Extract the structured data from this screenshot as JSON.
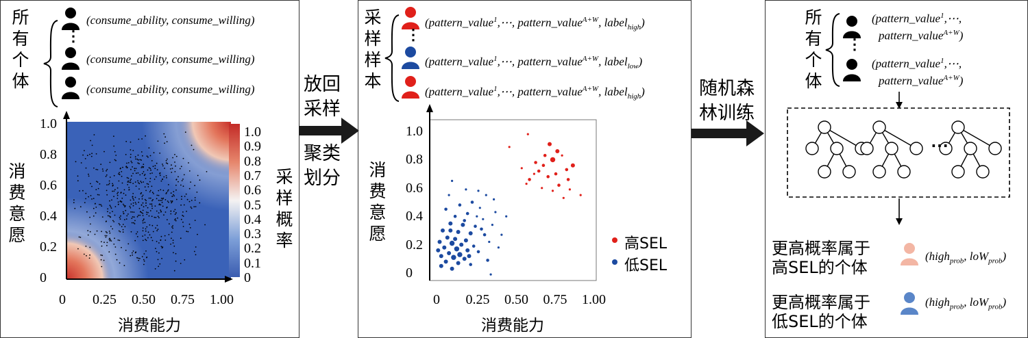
{
  "panel1": {
    "title": "所有个体",
    "tuple": "(consume_ability, consume_willing)",
    "ellipsis": "⋮",
    "heatmap": {
      "xlabel": "消费能力",
      "ylabel": "消费意愿",
      "xticks": [
        "0",
        "0.25",
        "0.50",
        "0.75",
        "1.00"
      ],
      "yticks": [
        "0",
        "0.2",
        "0.4",
        "0.6",
        "0.8",
        "1.0"
      ],
      "colorbar_label": "采样概率",
      "colorbar_ticks": [
        "0",
        "0.1",
        "0.2",
        "0.3",
        "0.4",
        "0.5",
        "0.6",
        "0.7",
        "0.8",
        "0.9",
        "1.0"
      ]
    }
  },
  "arrow1": {
    "top": "放回采样",
    "bottom": "聚类划分"
  },
  "panel2": {
    "title": "采样样本",
    "tuple_high": {
      "a": "pattern_value",
      "sup1": "1",
      "mid": ",⋯, pattern_value",
      "sup2": "A+W",
      "c": ", label",
      "sub": "high",
      "d": ")"
    },
    "tuple_low": {
      "a": "pattern_value",
      "sup1": "1",
      "mid": ",⋯, pattern_value",
      "sup2": "A+W",
      "c": ", label",
      "sub": "low",
      "d": ")"
    },
    "ellipsis": "⋮"
  },
  "chart_data": {
    "type": "scatter",
    "xlabel": "消费能力",
    "ylabel": "消费意愿",
    "xlim": [
      0,
      1.05
    ],
    "ylim": [
      -0.05,
      1.02
    ],
    "xticks": [
      "0",
      "0.25",
      "0.50",
      "0.75",
      "1.00"
    ],
    "yticks": [
      "0",
      "0.2",
      "0.4",
      "0.6",
      "0.8",
      "1.0"
    ],
    "legend_position": "bottom-right",
    "series": [
      {
        "name": "高SEL",
        "color": "#e0201a",
        "points": [
          [
            0.47,
            0.89
          ],
          [
            0.59,
            0.98
          ],
          [
            0.73,
            0.91
          ],
          [
            0.78,
            0.86
          ],
          [
            0.7,
            0.83
          ],
          [
            0.75,
            0.8
          ],
          [
            0.69,
            0.76
          ],
          [
            0.66,
            0.72
          ],
          [
            0.88,
            0.76
          ],
          [
            0.63,
            0.7
          ],
          [
            0.72,
            0.68
          ],
          [
            0.84,
            0.73
          ],
          [
            0.55,
            0.74
          ],
          [
            0.6,
            0.66
          ],
          [
            0.79,
            0.62
          ],
          [
            0.85,
            0.66
          ],
          [
            0.93,
            0.55
          ],
          [
            0.68,
            0.6
          ],
          [
            0.75,
            0.58
          ],
          [
            0.82,
            0.53
          ],
          [
            0.58,
            0.63
          ],
          [
            0.86,
            0.59
          ],
          [
            0.77,
            0.7
          ],
          [
            0.64,
            0.78
          ],
          [
            0.81,
            0.83
          ]
        ],
        "sizes": [
          1,
          1,
          3,
          3,
          2,
          4,
          2,
          2,
          3,
          1,
          2,
          2,
          1,
          2,
          2,
          2,
          1,
          1,
          1,
          1,
          1,
          1,
          2,
          2,
          1
        ]
      },
      {
        "name": "低SEL",
        "color": "#1c4aa0",
        "points": [
          [
            0.1,
            0.65
          ],
          [
            0.19,
            0.59
          ],
          [
            0.08,
            0.55
          ],
          [
            0.23,
            0.5
          ],
          [
            0.15,
            0.48
          ],
          [
            0.28,
            0.46
          ],
          [
            0.06,
            0.45
          ],
          [
            0.2,
            0.42
          ],
          [
            0.12,
            0.4
          ],
          [
            0.3,
            0.38
          ],
          [
            0.09,
            0.35
          ],
          [
            0.17,
            0.34
          ],
          [
            0.25,
            0.33
          ],
          [
            0.04,
            0.3
          ],
          [
            0.14,
            0.29
          ],
          [
            0.22,
            0.28
          ],
          [
            0.31,
            0.27
          ],
          [
            0.07,
            0.25
          ],
          [
            0.12,
            0.24
          ],
          [
            0.19,
            0.23
          ],
          [
            0.02,
            0.22
          ],
          [
            0.1,
            0.21
          ],
          [
            0.16,
            0.2
          ],
          [
            0.24,
            0.19
          ],
          [
            0.05,
            0.18
          ],
          [
            0.13,
            0.17
          ],
          [
            0.2,
            0.16
          ],
          [
            0.27,
            0.15
          ],
          [
            0.08,
            0.14
          ],
          [
            0.15,
            0.13
          ],
          [
            0.03,
            0.12
          ],
          [
            0.11,
            0.11
          ],
          [
            0.18,
            0.1
          ],
          [
            0.06,
            0.08
          ],
          [
            0.14,
            0.07
          ],
          [
            0.22,
            0.06
          ],
          [
            0.03,
            0.05
          ],
          [
            0.1,
            0.03
          ],
          [
            0.36,
            0.34
          ],
          [
            0.34,
            0.22
          ],
          [
            0.38,
            0.43
          ],
          [
            0.4,
            0.18
          ],
          [
            0.33,
            0.09
          ],
          [
            0.35,
            -0.01
          ],
          [
            0.26,
            0.4
          ],
          [
            0.09,
            0.3
          ],
          [
            0.18,
            0.37
          ],
          [
            0.29,
            0.31
          ],
          [
            0.21,
            0.12
          ],
          [
            0.01,
            0.16
          ],
          [
            0.45,
            0.4
          ],
          [
            0.42,
            0.27
          ],
          [
            0.37,
            0.52
          ],
          [
            0.32,
            0.55
          ],
          [
            0.27,
            0.58
          ]
        ],
        "sizes": [
          1,
          1,
          1,
          2,
          2,
          1,
          2,
          2,
          2,
          1,
          3,
          3,
          2,
          3,
          3,
          3,
          2,
          3,
          3,
          3,
          3,
          4,
          3,
          2,
          3,
          4,
          3,
          2,
          3,
          4,
          3,
          4,
          3,
          3,
          3,
          2,
          3,
          3,
          1,
          1,
          1,
          1,
          2,
          1,
          1,
          3,
          2,
          2,
          3,
          3,
          1,
          1,
          1,
          1,
          1
        ]
      }
    ]
  },
  "legend": {
    "high": "高SEL",
    "low": "低SEL"
  },
  "arrow2": {
    "label": "随机森林训练"
  },
  "panel3": {
    "title": "所有个体",
    "tuple_line1": {
      "a": "(pattern_value",
      "sup": "1",
      "b": ",⋯,"
    },
    "tuple_line2": {
      "a": "pattern_value",
      "sup": "A+W",
      "b": ")"
    },
    "ellipsis": "⋮",
    "forest_ellipsis": "⋯",
    "result_high_text": [
      "更高概率属于",
      "高SEL的个体"
    ],
    "result_low_text": [
      "更高概率属于",
      "低SEL的个体"
    ],
    "prob_tuple": {
      "a": "(high",
      "sub1": "prob",
      "b": ", loW",
      "sub2": "prob",
      "c": ")"
    }
  },
  "colors": {
    "red": "#e0201a",
    "blue": "#1c4aa0",
    "light_red": "#f3b6a4",
    "light_blue": "#5a86c8"
  }
}
